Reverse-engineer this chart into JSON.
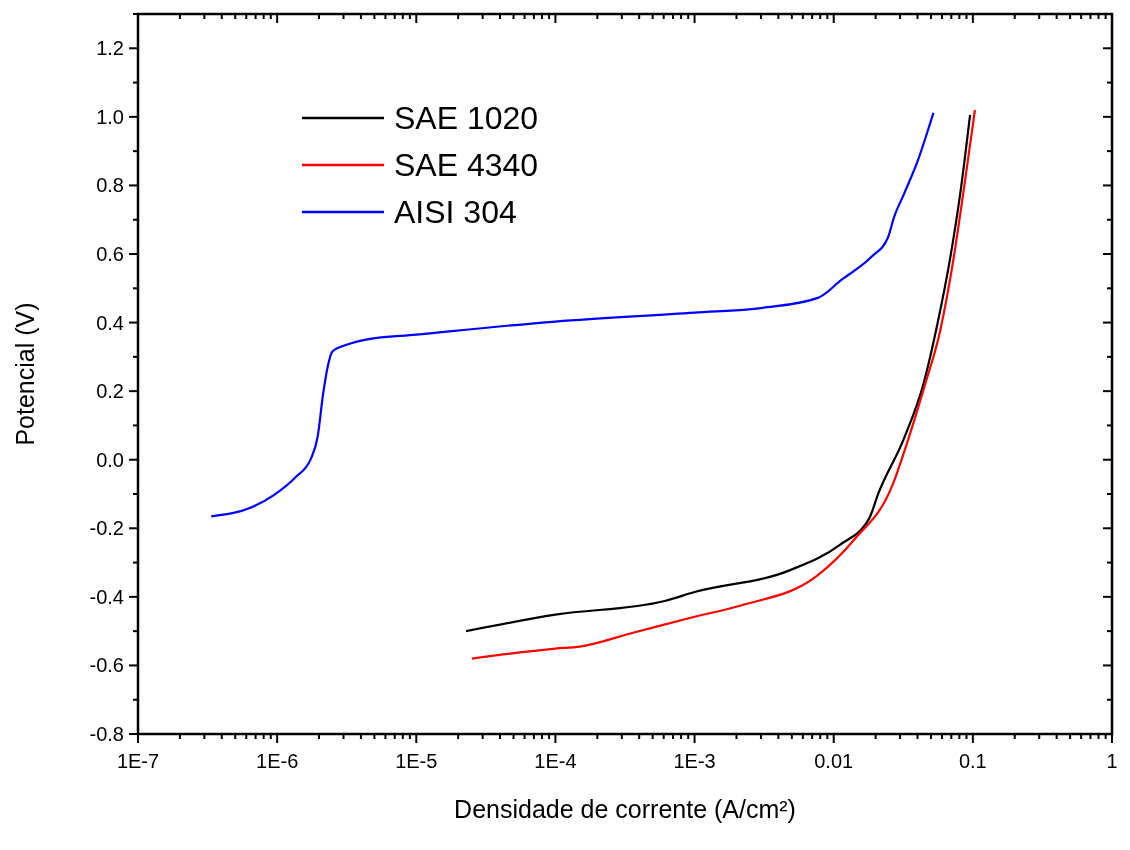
{
  "chart_data": {
    "type": "line",
    "xlabel": "Densidade de corrente (A/cm²)",
    "ylabel": "Potencial (V)",
    "log": "x",
    "xlim": [
      1e-07,
      1
    ],
    "ylim": [
      -0.8,
      1.3
    ],
    "xticks": [
      {
        "value": 1e-07,
        "label": "1E-7"
      },
      {
        "value": 1e-06,
        "label": "1E-6"
      },
      {
        "value": 1e-05,
        "label": "1E-5"
      },
      {
        "value": 0.0001,
        "label": "1E-4"
      },
      {
        "value": 0.001,
        "label": "1E-3"
      },
      0.01,
      0.1,
      1
    ],
    "yticks": [
      -0.8,
      -0.6,
      -0.4,
      -0.2,
      {
        "value": 0,
        "label": "0.0"
      },
      0.2,
      0.4,
      0.6,
      0.8,
      {
        "value": 1,
        "label": "1.0"
      },
      1.2
    ],
    "grid": false,
    "legend": "top left",
    "line_style": "solid",
    "series": [
      {
        "name": "SAE 1020",
        "color": "#000000",
        "x": [
          2.28e-05,
          0.0001,
          0.00061,
          0.001,
          0.00486,
          0.011,
          0.018,
          0.0209,
          0.0319,
          0.0443,
          0.0557,
          0.0689,
          0.081,
          0.0955
        ],
        "values": [
          -0.5,
          -0.452,
          -0.412,
          -0.386,
          -0.322,
          -0.249,
          -0.171,
          -0.099,
          0.061,
          0.223,
          0.397,
          0.591,
          0.774,
          1.006
        ]
      },
      {
        "name": "SAE 4340",
        "color": "#ff0000",
        "x": [
          2.51e-05,
          0.0001,
          0.00015,
          0.000367,
          0.001,
          0.00215,
          0.00757,
          0.0141,
          0.0267,
          0.0319,
          0.0443,
          0.0585,
          0.0724,
          0.0851,
          0.1035
        ],
        "values": [
          -0.58,
          -0.551,
          -0.545,
          -0.504,
          -0.458,
          -0.425,
          -0.339,
          -0.232,
          -0.07,
          0.02,
          0.206,
          0.38,
          0.583,
          0.774,
          1.02
        ]
      },
      {
        "name": "AISI 304",
        "color": "#0000ff",
        "x": [
          3.36e-07,
          6.8e-07,
          9.4e-07,
          1.35e-06,
          1.75e-06,
          1.96e-06,
          2.13e-06,
          2.31e-06,
          2.5e-06,
          3.2e-06,
          4.45e-06,
          1e-05,
          0.0001,
          0.001,
          0.0031,
          0.0077,
          0.0114,
          0.0186,
          0.0246,
          0.0271,
          0.0319,
          0.0402,
          0.0457,
          0.0521
        ],
        "values": [
          -0.165,
          -0.136,
          -0.104,
          -0.052,
          0.003,
          0.07,
          0.186,
          0.272,
          0.316,
          0.336,
          0.351,
          0.365,
          0.403,
          0.429,
          0.443,
          0.472,
          0.525,
          0.591,
          0.649,
          0.707,
          0.774,
          0.872,
          0.939,
          1.012
        ]
      }
    ]
  }
}
